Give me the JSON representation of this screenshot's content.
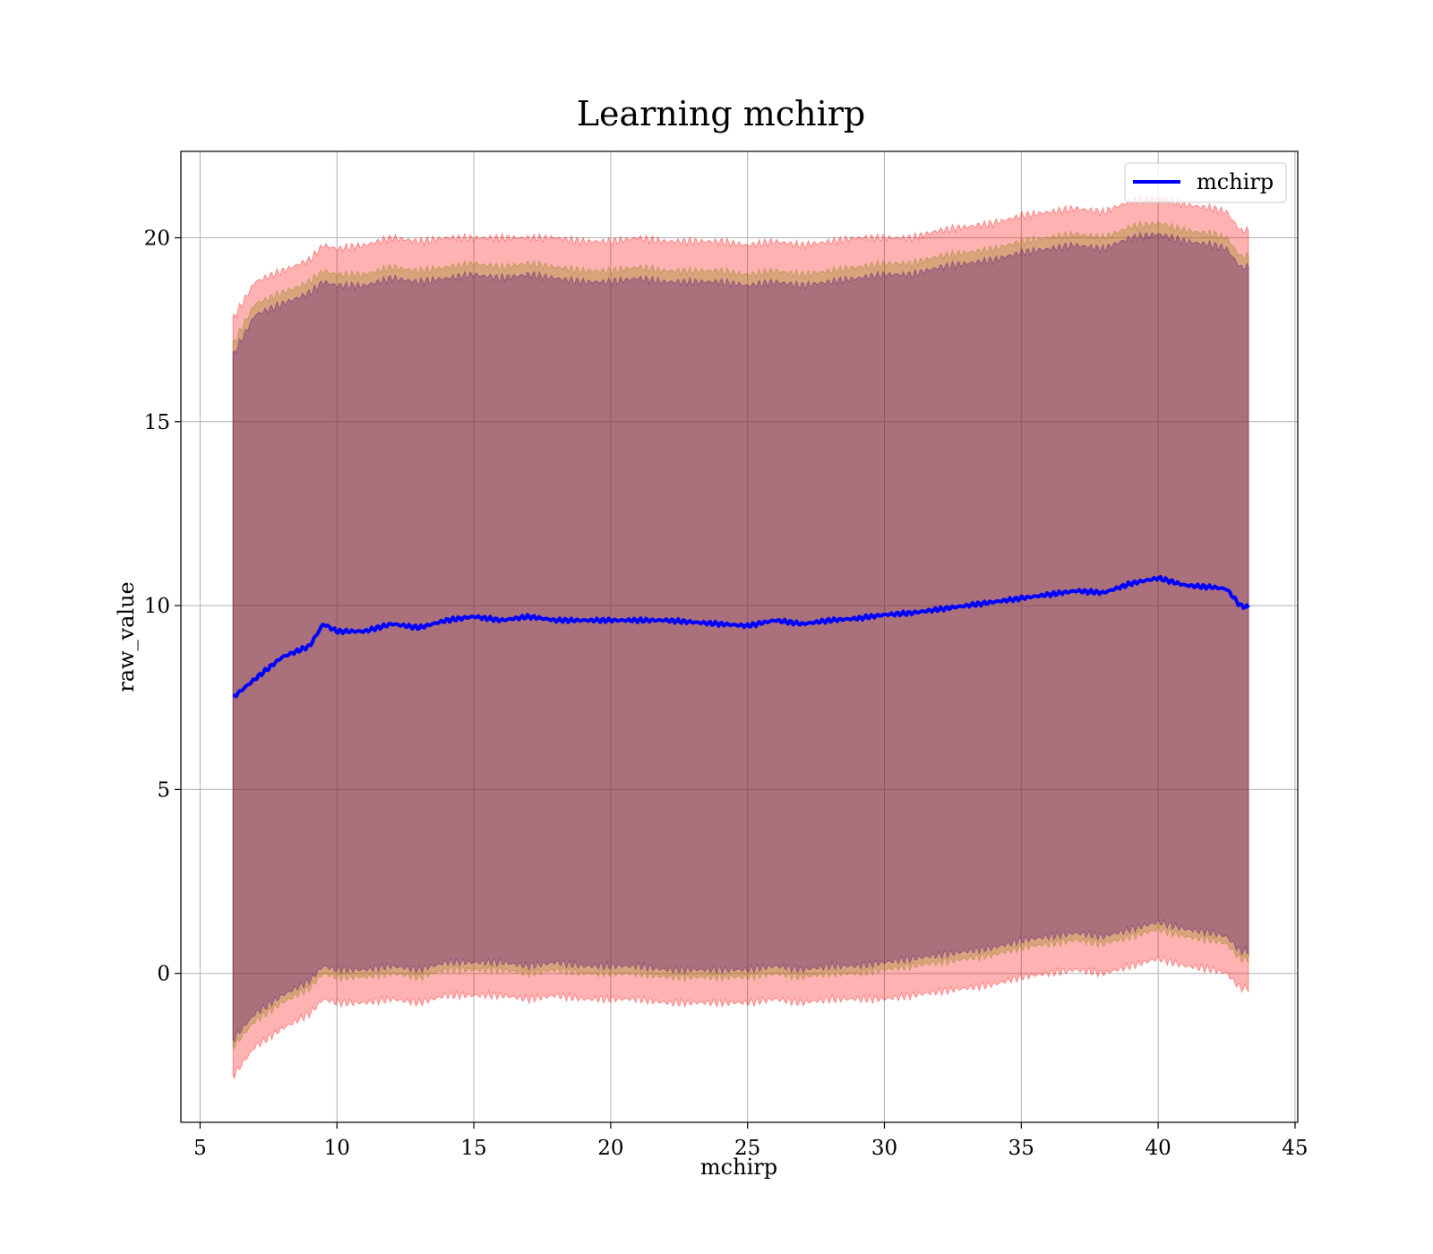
{
  "chart_data": {
    "type": "area",
    "title": "Learning mchirp",
    "xlabel": "mchirp",
    "ylabel": "raw_value",
    "xlim": [
      4.3,
      45.1
    ],
    "ylim": [
      -4.05,
      22.35
    ],
    "xticks": [
      5,
      10,
      15,
      20,
      25,
      30,
      35,
      40,
      45
    ],
    "yticks": [
      0,
      5,
      10,
      15,
      20
    ],
    "grid": true,
    "legend": {
      "position": "top-right",
      "entries": [
        "mchirp"
      ]
    },
    "x": [
      6.2,
      7,
      8,
      9,
      9.5,
      10,
      11,
      12,
      13,
      14,
      15,
      16,
      17,
      18,
      19,
      20,
      21,
      22,
      23,
      24,
      25,
      26,
      27,
      28,
      29,
      30,
      31,
      32,
      33,
      34,
      35,
      36,
      37,
      38,
      39,
      40,
      41,
      42,
      42.5,
      43,
      43.3
    ],
    "series": [
      {
        "name": "mchirp",
        "color": "#0000ff",
        "values": [
          7.5,
          8.0,
          8.6,
          8.9,
          9.5,
          9.3,
          9.3,
          9.5,
          9.4,
          9.6,
          9.7,
          9.6,
          9.7,
          9.6,
          9.6,
          9.6,
          9.6,
          9.6,
          9.55,
          9.5,
          9.45,
          9.6,
          9.5,
          9.6,
          9.65,
          9.75,
          9.8,
          9.9,
          10.0,
          10.1,
          10.2,
          10.3,
          10.4,
          10.35,
          10.6,
          10.75,
          10.55,
          10.5,
          10.45,
          10.0,
          9.95
        ]
      }
    ],
    "bands": [
      {
        "name": "",
        "color": "#ff0000",
        "opacity": 0.3,
        "upper": [
          17.8,
          18.8,
          19.1,
          19.4,
          19.8,
          19.7,
          19.8,
          20.0,
          19.9,
          20.0,
          20.0,
          20.0,
          20.0,
          20.0,
          19.9,
          19.9,
          20.0,
          19.9,
          19.9,
          19.9,
          19.8,
          19.9,
          19.8,
          19.9,
          20.0,
          20.0,
          20.0,
          20.2,
          20.3,
          20.4,
          20.6,
          20.7,
          20.8,
          20.7,
          21.0,
          21.1,
          20.9,
          20.8,
          20.7,
          20.2,
          20.2
        ],
        "lower": [
          -2.8,
          -2.0,
          -1.5,
          -1.1,
          -0.7,
          -0.8,
          -0.8,
          -0.7,
          -0.8,
          -0.6,
          -0.6,
          -0.6,
          -0.7,
          -0.6,
          -0.7,
          -0.7,
          -0.7,
          -0.8,
          -0.8,
          -0.8,
          -0.8,
          -0.7,
          -0.8,
          -0.7,
          -0.7,
          -0.7,
          -0.6,
          -0.5,
          -0.4,
          -0.3,
          -0.1,
          0.0,
          0.1,
          0.0,
          0.2,
          0.4,
          0.2,
          0.1,
          0.0,
          -0.4,
          -0.4
        ]
      },
      {
        "name": "",
        "color": "#808000",
        "opacity": 0.3,
        "upper": [
          17.1,
          18.2,
          18.5,
          18.8,
          19.1,
          19.0,
          19.0,
          19.2,
          19.1,
          19.2,
          19.3,
          19.2,
          19.3,
          19.2,
          19.1,
          19.1,
          19.2,
          19.1,
          19.1,
          19.1,
          19.0,
          19.1,
          19.0,
          19.1,
          19.2,
          19.3,
          19.3,
          19.5,
          19.6,
          19.7,
          19.9,
          20.0,
          20.1,
          20.0,
          20.3,
          20.4,
          20.2,
          20.1,
          20.0,
          19.5,
          19.5
        ],
        "lower": [
          -2.0,
          -1.3,
          -0.8,
          -0.4,
          0.0,
          -0.1,
          -0.1,
          0.0,
          -0.1,
          0.1,
          0.1,
          0.1,
          0.0,
          0.1,
          0.0,
          0.0,
          0.0,
          -0.1,
          -0.1,
          -0.1,
          -0.1,
          0.0,
          -0.1,
          0.0,
          0.0,
          0.1,
          0.2,
          0.3,
          0.4,
          0.5,
          0.7,
          0.8,
          0.9,
          0.8,
          1.0,
          1.2,
          1.0,
          0.9,
          0.8,
          0.4,
          0.4
        ]
      },
      {
        "name": "",
        "color": "#400080",
        "opacity": 0.3,
        "upper": [
          16.8,
          17.9,
          18.2,
          18.5,
          18.8,
          18.7,
          18.7,
          18.9,
          18.8,
          18.9,
          19.0,
          18.9,
          19.0,
          18.9,
          18.8,
          18.8,
          18.9,
          18.8,
          18.8,
          18.8,
          18.7,
          18.8,
          18.7,
          18.8,
          18.9,
          19.0,
          19.0,
          19.2,
          19.3,
          19.4,
          19.6,
          19.7,
          19.8,
          19.7,
          20.0,
          20.1,
          19.9,
          19.8,
          19.7,
          19.2,
          19.2
        ],
        "lower": [
          -1.8,
          -1.1,
          -0.6,
          -0.2,
          0.2,
          0.1,
          0.1,
          0.2,
          0.1,
          0.3,
          0.3,
          0.3,
          0.2,
          0.3,
          0.2,
          0.2,
          0.2,
          0.1,
          0.1,
          0.1,
          0.1,
          0.2,
          0.1,
          0.2,
          0.2,
          0.3,
          0.4,
          0.5,
          0.6,
          0.7,
          0.9,
          1.0,
          1.1,
          1.0,
          1.2,
          1.4,
          1.2,
          1.1,
          1.0,
          0.6,
          0.6
        ]
      }
    ]
  }
}
